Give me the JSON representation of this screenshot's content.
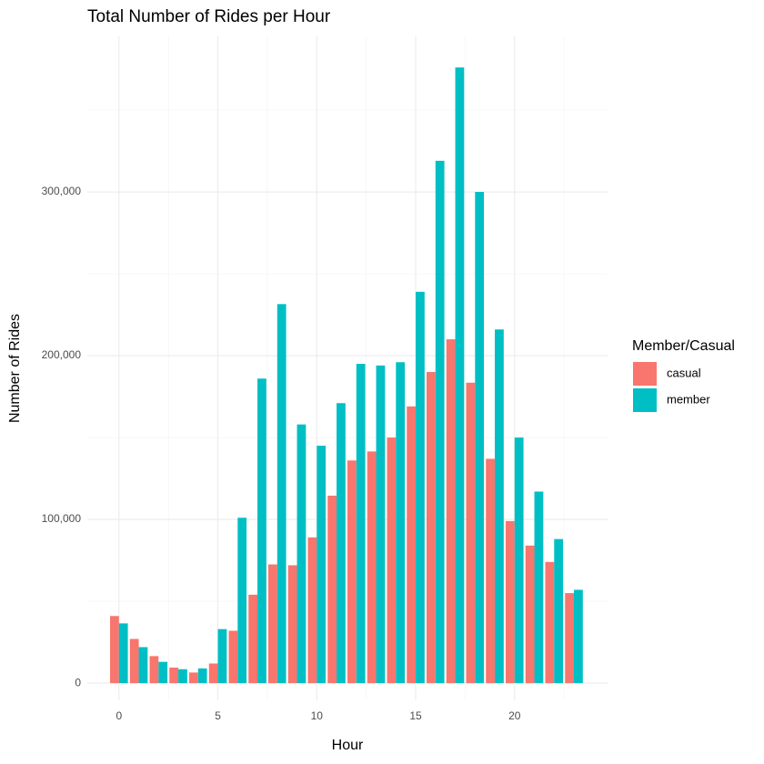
{
  "chart_data": {
    "type": "bar",
    "title": "Total Number of Rides per Hour",
    "x_label": "Hour",
    "y_label": "Number of Rides",
    "legend_title": "Member/Casual",
    "legend_position": "right",
    "x": [
      0,
      1,
      2,
      3,
      4,
      5,
      6,
      7,
      8,
      9,
      10,
      11,
      12,
      13,
      14,
      15,
      16,
      17,
      18,
      19,
      20,
      21,
      22,
      23
    ],
    "series": [
      {
        "name": "casual",
        "color": "#f8766d",
        "values": [
          41000,
          27000,
          16500,
          9500,
          6500,
          12000,
          32000,
          54000,
          72500,
          72000,
          89000,
          114500,
          136000,
          141500,
          150000,
          169000,
          190000,
          210000,
          183500,
          137000,
          99000,
          84000,
          74000,
          55000
        ]
      },
      {
        "name": "member",
        "color": "#00bfc4",
        "values": [
          36500,
          22000,
          13000,
          8500,
          9000,
          33000,
          101000,
          186000,
          231500,
          158000,
          145000,
          171000,
          195000,
          194000,
          196000,
          239000,
          319000,
          376000,
          300000,
          216000,
          150000,
          117000,
          88000,
          57000
        ]
      }
    ],
    "xlim": [
      -1.6,
      24.7
    ],
    "xticks": [
      0,
      5,
      10,
      15,
      20
    ],
    "xminorticks": [
      2.5,
      7.5,
      12.5,
      17.5,
      22.5
    ],
    "ylim": [
      -10500,
      395000
    ],
    "yticks": [
      0,
      {
        "value": 100000,
        "label": "100,000"
      },
      {
        "value": 200000,
        "label": "200,000"
      },
      {
        "value": 300000,
        "label": "300,000"
      }
    ],
    "yminorticks": [
      50000,
      150000,
      250000,
      350000
    ],
    "grid": true
  }
}
